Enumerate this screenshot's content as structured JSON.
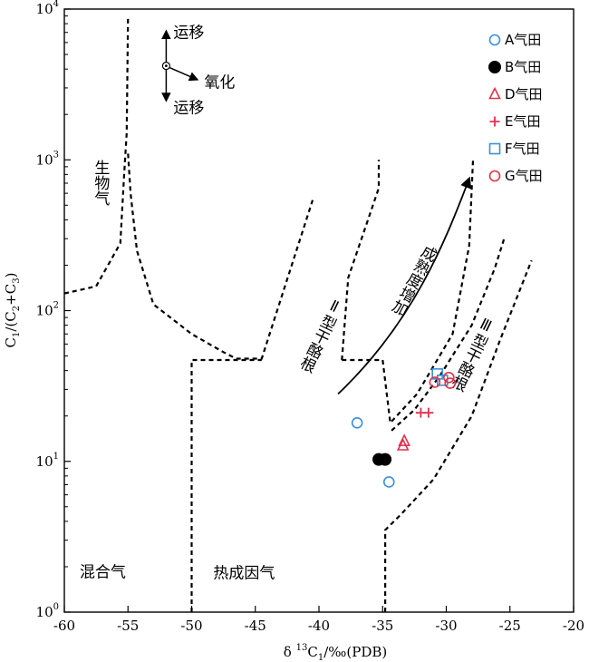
{
  "chart_data": {
    "type": "scatter",
    "xlabel": "δ¹³C₁/‰(PDB)",
    "xlabel_parts": {
      "pre": "δ ",
      "sup": "13",
      "main": "C",
      "sub": "1",
      "post": "/‰(PDB)"
    },
    "ylabel": "C1/(C2+C3)",
    "ylabel_parts": [
      "C",
      "1",
      "/(C",
      "2",
      "+C",
      "3",
      ")"
    ],
    "x_scale": "linear",
    "y_scale": "log",
    "xlim": [
      -60,
      -20
    ],
    "ylim": [
      1,
      10000
    ],
    "x_ticks": [
      {
        "value": -60,
        "label": "-60"
      },
      {
        "value": -55,
        "label": "-55"
      },
      {
        "value": -50,
        "label": "-50"
      },
      {
        "value": -45,
        "label": "-45"
      },
      {
        "value": -40,
        "label": "-40"
      },
      {
        "value": -35,
        "label": "-35"
      },
      {
        "value": -30,
        "label": "-30"
      },
      {
        "value": -25,
        "label": "-25"
      },
      {
        "value": -20,
        "label": "-20"
      }
    ],
    "y_ticks": [
      {
        "value": 1,
        "base": "10",
        "exp": "0"
      },
      {
        "value": 10,
        "base": "10",
        "exp": "1"
      },
      {
        "value": 100,
        "base": "10",
        "exp": "2"
      },
      {
        "value": 1000,
        "base": "10",
        "exp": "3"
      },
      {
        "value": 10000,
        "base": "10",
        "exp": "4"
      }
    ],
    "grid": false,
    "legend_position": "top-right",
    "series": [
      {
        "name": "A气田",
        "marker": "circle-open",
        "color": "#3d8fd6",
        "points": [
          {
            "x": -37.0,
            "y": 18
          },
          {
            "x": -34.5,
            "y": 7.3
          }
        ]
      },
      {
        "name": "B气田",
        "marker": "circle-filled",
        "color": "#000000",
        "points": [
          {
            "x": -35.3,
            "y": 10.3
          },
          {
            "x": -34.8,
            "y": 10.3
          }
        ]
      },
      {
        "name": "D气田",
        "marker": "triangle-open",
        "color": "#e0324b",
        "points": [
          {
            "x": -33.4,
            "y": 12.7
          },
          {
            "x": -33.3,
            "y": 13.6
          }
        ]
      },
      {
        "name": "E气田",
        "marker": "plus",
        "color": "#e0324b",
        "points": [
          {
            "x": -32.0,
            "y": 21
          },
          {
            "x": -31.4,
            "y": 21
          }
        ]
      },
      {
        "name": "F气田",
        "marker": "square-open",
        "color": "#3d8fd6",
        "points": [
          {
            "x": -30.7,
            "y": 38
          },
          {
            "x": -30.3,
            "y": 34.5
          }
        ]
      },
      {
        "name": "G气田",
        "marker": "circle-open",
        "color": "#e0324b",
        "points": [
          {
            "x": -30.9,
            "y": 33.5
          },
          {
            "x": -29.8,
            "y": 36
          },
          {
            "x": -29.7,
            "y": 33
          }
        ]
      }
    ],
    "regions": [
      {
        "label": "生物气",
        "x": -57.2,
        "y": 1000,
        "vertical": true
      },
      {
        "label": "混合气",
        "x": -58.8,
        "y": 1.7,
        "vertical": false
      },
      {
        "label": "热成因气",
        "x": -48.3,
        "y": 1.68,
        "vertical": false
      },
      {
        "label": "Ⅱ型干酪根",
        "x": -38.5,
        "y": 120,
        "vertical": true,
        "rotate": -64
      },
      {
        "label": "Ⅲ型干酪根",
        "x": -26.6,
        "y": 90,
        "vertical": true,
        "rotate": -64
      },
      {
        "label": "成熟度增加",
        "x": -31.2,
        "y": 270,
        "vertical": true,
        "rotate": -62
      }
    ],
    "boundaries": [
      [
        [
          -60,
          130
        ],
        [
          -57.5,
          145
        ],
        [
          -55.6,
          280
        ],
        [
          -55.3,
          800
        ],
        [
          -55.1,
          1500
        ],
        [
          -55.0,
          9000
        ]
      ],
      [
        [
          -55.0,
          1100
        ],
        [
          -54.8,
          600
        ],
        [
          -54.3,
          250
        ],
        [
          -53,
          110
        ],
        [
          -50,
          70
        ],
        [
          -47.5,
          53
        ],
        [
          -46.5,
          48
        ],
        [
          -44.5,
          48
        ],
        [
          -40.5,
          540
        ]
      ],
      [
        [
          -50,
          1
        ],
        [
          -50,
          47
        ],
        [
          -44.5,
          47
        ]
      ],
      [
        [
          -38.2,
          47
        ],
        [
          -37.7,
          165
        ],
        [
          -35.3,
          650
        ],
        [
          -35.3,
          1000
        ]
      ],
      [
        [
          -38.2,
          47
        ],
        [
          -35.0,
          47
        ],
        [
          -34.4,
          18
        ],
        [
          -32.3,
          28
        ],
        [
          -29.5,
          70
        ],
        [
          -28.2,
          270
        ],
        [
          -27.9,
          1000
        ]
      ],
      [
        [
          -34.8,
          1
        ],
        [
          -34.8,
          3.5
        ],
        [
          -33.5,
          4.5
        ],
        [
          -31.0,
          7.6
        ],
        [
          -28.0,
          20
        ],
        [
          -25.8,
          63
        ],
        [
          -23.3,
          215
        ]
      ],
      [
        [
          -34.3,
          16
        ],
        [
          -32.5,
          22
        ],
        [
          -30.5,
          37
        ],
        [
          -28.0,
          80
        ],
        [
          -26.2,
          190
        ],
        [
          -25.4,
          310
        ]
      ]
    ],
    "maturity_arrow": [
      [
        -38.5,
        28
      ],
      [
        -32.5,
        85
      ],
      [
        -30.0,
        300
      ],
      [
        -28.2,
        750
      ]
    ],
    "process_indicator": {
      "up_label": "运移",
      "down_label": "运移",
      "side_label": "氧化",
      "center": {
        "x": -52.0,
        "y": 4200
      }
    }
  }
}
